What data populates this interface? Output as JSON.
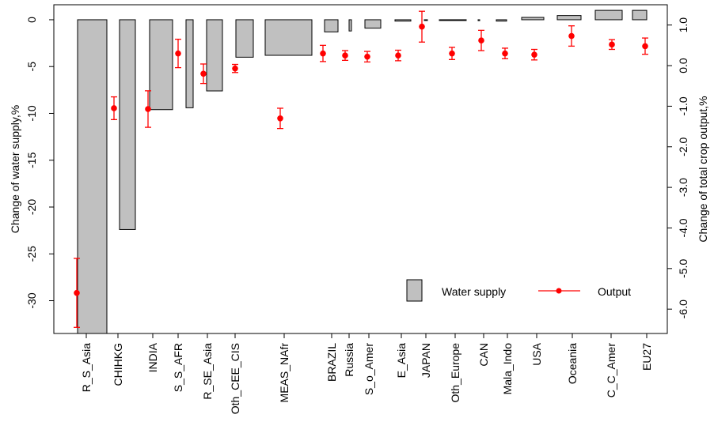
{
  "chart_data": {
    "type": "bar",
    "categories": [
      "R_S_Asia",
      "CHIHKG",
      "INDIA",
      "S_S_AFR",
      "R_SE_Asia",
      "Oth_CEE_CIS",
      "MEAS_NAfr",
      "BRAZIL",
      "Russia",
      "S_o_Amer",
      "E_Asia",
      "JAPAN",
      "Oth_Europe",
      "CAN",
      "Mala_Indo",
      "USA",
      "Oceania",
      "C_C_Amer",
      "EU27"
    ],
    "series": [
      {
        "name": "Water supply",
        "axis": "left",
        "values": [
          -34.0,
          -22.4,
          -9.6,
          -9.4,
          -7.6,
          -4.0,
          -3.8,
          -1.3,
          -1.2,
          -0.9,
          -0.15,
          -0.05,
          -0.05,
          -0.1,
          -0.15,
          0.25,
          0.45,
          1.0,
          1.0
        ]
      },
      {
        "name": "Output",
        "axis": "right",
        "values": [
          -5.6,
          -1.05,
          -1.07,
          0.3,
          -0.2,
          -0.07,
          -1.3,
          0.3,
          0.25,
          0.22,
          0.25,
          0.96,
          0.3,
          0.62,
          0.3,
          0.27,
          0.73,
          0.52,
          0.48
        ],
        "error": [
          0.85,
          0.28,
          0.45,
          0.35,
          0.24,
          0.1,
          0.25,
          0.2,
          0.12,
          0.13,
          0.13,
          0.38,
          0.15,
          0.25,
          0.13,
          0.13,
          0.25,
          0.12,
          0.2
        ]
      }
    ],
    "ylabel": "Change of water supply,%",
    "y2label": "Change of total crop output,%",
    "ylim": [
      -33.5,
      1.6
    ],
    "y2lim": [
      -6.6,
      1.5
    ],
    "yticks": [
      0,
      -5,
      -10,
      -15,
      -20,
      -25,
      -30
    ],
    "y2ticks": [
      1.0,
      0.0,
      -1.0,
      -2.0,
      -3.0,
      -4.0,
      -5.0,
      -6.0
    ],
    "y2tick_labels": [
      "1.0",
      "0.0",
      "-1.0",
      "-2.0",
      "-3.0",
      "-4.0",
      "-5.0",
      "-6.0"
    ],
    "legend_position": "bottom-right",
    "grid": false
  },
  "legend": {
    "water_supply_label": "Water supply",
    "output_label": "Output"
  },
  "colors": {
    "bar_fill": "#c0c0c0",
    "bar_stroke": "#000000",
    "output": "#ff0000"
  }
}
